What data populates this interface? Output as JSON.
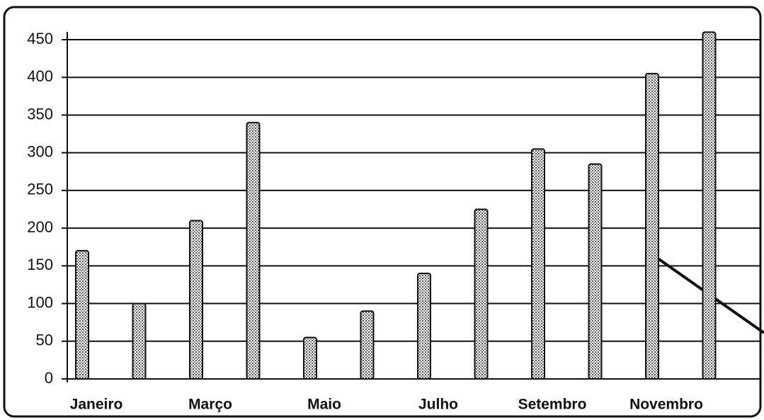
{
  "chart_data": {
    "type": "bar",
    "categories": [
      "Janeiro",
      null,
      "Março",
      null,
      "Maio",
      null,
      "Julho",
      null,
      "Setembro",
      null,
      "Novembro",
      null
    ],
    "values": [
      170,
      100,
      210,
      340,
      55,
      90,
      140,
      225,
      305,
      285,
      405,
      460
    ],
    "color": "#9a9a9a",
    "ylim": [
      0,
      450
    ],
    "yticks": [
      0,
      50,
      100,
      150,
      200,
      250,
      300,
      350,
      400,
      450
    ],
    "grid": true
  }
}
